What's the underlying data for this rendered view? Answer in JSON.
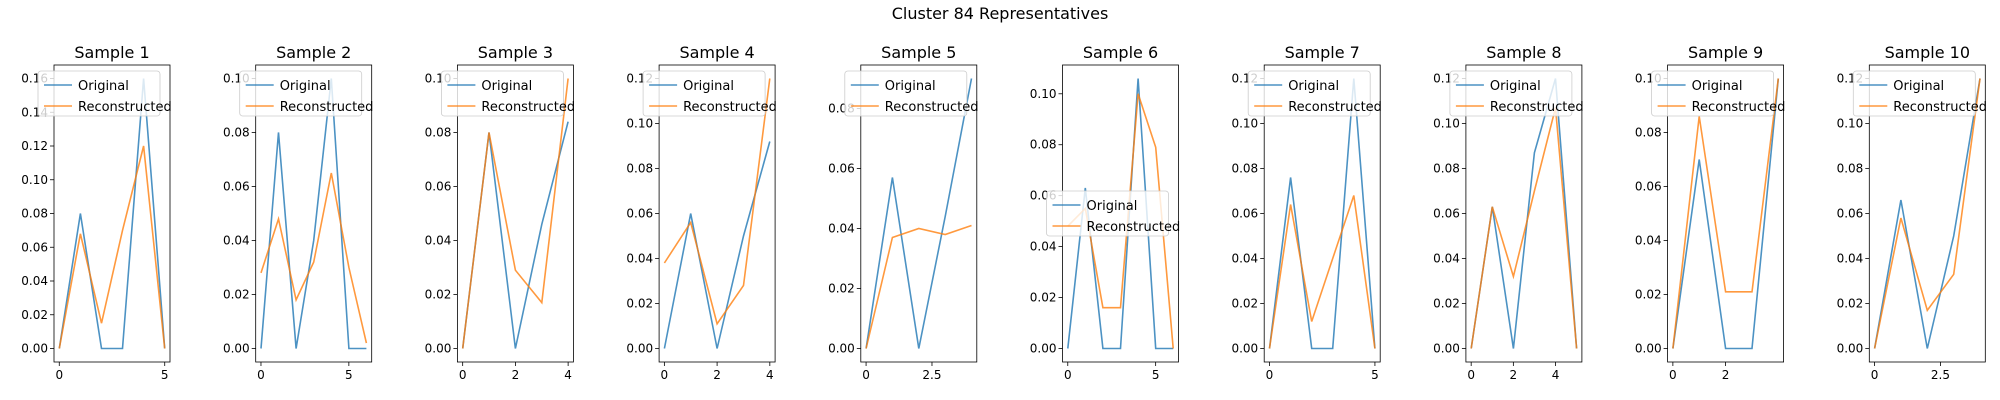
{
  "figure": {
    "title": "Cluster 84 Representatives"
  },
  "style": {
    "original_color": "#1f77b4",
    "reconstructed_color": "#ff7f0e",
    "axis_color": "#000000",
    "background": "#ffffff"
  },
  "chart_data": [
    {
      "type": "line",
      "title": "Sample 1",
      "x_ticks": [
        0,
        5
      ],
      "y_ticks": [
        0.0,
        0.02,
        0.04,
        0.06,
        0.08,
        0.1,
        0.12,
        0.14,
        0.16
      ],
      "xlim": [
        -0.25,
        5.25
      ],
      "ylim": [
        -0.008,
        0.168
      ],
      "legend": "upper left",
      "series": [
        {
          "name": "Original",
          "x": [
            0,
            1,
            2,
            3,
            4,
            5
          ],
          "y": [
            0.0,
            0.08,
            0.0,
            0.0,
            0.16,
            0.0
          ]
        },
        {
          "name": "Reconstructed",
          "x": [
            0,
            1,
            2,
            3,
            4,
            5
          ],
          "y": [
            0.0,
            0.068,
            0.015,
            0.07,
            0.12,
            0.0
          ]
        }
      ]
    },
    {
      "type": "line",
      "title": "Sample 2",
      "x_ticks": [
        0,
        5
      ],
      "y_ticks": [
        0.0,
        0.02,
        0.04,
        0.06,
        0.08,
        0.1
      ],
      "xlim": [
        -0.3,
        6.3
      ],
      "ylim": [
        -0.005,
        0.105
      ],
      "legend": "upper left",
      "series": [
        {
          "name": "Original",
          "x": [
            0,
            1,
            2,
            3,
            4,
            5,
            6
          ],
          "y": [
            0.0,
            0.08,
            0.0,
            0.04,
            0.1,
            0.0,
            0.0
          ]
        },
        {
          "name": "Reconstructed",
          "x": [
            0,
            1,
            2,
            3,
            4,
            5,
            6
          ],
          "y": [
            0.028,
            0.048,
            0.018,
            0.032,
            0.065,
            0.03,
            0.002
          ]
        }
      ]
    },
    {
      "type": "line",
      "title": "Sample 3",
      "x_ticks": [
        0,
        2,
        4
      ],
      "y_ticks": [
        0.0,
        0.02,
        0.04,
        0.06,
        0.08,
        0.1
      ],
      "xlim": [
        -0.2,
        4.2
      ],
      "ylim": [
        -0.005,
        0.105
      ],
      "legend": "upper left",
      "series": [
        {
          "name": "Original",
          "x": [
            0,
            1,
            2,
            3,
            4
          ],
          "y": [
            0.0,
            0.08,
            0.0,
            0.046,
            0.084
          ]
        },
        {
          "name": "Reconstructed",
          "x": [
            0,
            1,
            2,
            3,
            4
          ],
          "y": [
            0.0,
            0.08,
            0.029,
            0.017,
            0.1
          ]
        }
      ]
    },
    {
      "type": "line",
      "title": "Sample 4",
      "x_ticks": [
        0,
        2,
        4
      ],
      "y_ticks": [
        0.0,
        0.02,
        0.04,
        0.06,
        0.08,
        0.1,
        0.12
      ],
      "xlim": [
        -0.2,
        4.2
      ],
      "ylim": [
        -0.006,
        0.126
      ],
      "legend": "upper left",
      "series": [
        {
          "name": "Original",
          "x": [
            0,
            1,
            2,
            3,
            4
          ],
          "y": [
            0.0,
            0.06,
            0.0,
            0.05,
            0.092
          ]
        },
        {
          "name": "Reconstructed",
          "x": [
            0,
            1,
            2,
            3,
            4
          ],
          "y": [
            0.038,
            0.056,
            0.011,
            0.028,
            0.12
          ]
        }
      ]
    },
    {
      "type": "line",
      "title": "Sample 5",
      "x_ticks": [
        0,
        2.5
      ],
      "y_ticks": [
        0.0,
        0.02,
        0.04,
        0.06,
        0.08
      ],
      "xlim": [
        -0.2,
        4.2
      ],
      "ylim": [
        -0.0045,
        0.0945
      ],
      "legend": "upper left",
      "series": [
        {
          "name": "Original",
          "x": [
            0,
            1,
            2,
            3,
            4
          ],
          "y": [
            0.0,
            0.057,
            0.0,
            0.044,
            0.09
          ]
        },
        {
          "name": "Reconstructed",
          "x": [
            0,
            1,
            2,
            3,
            4
          ],
          "y": [
            0.0,
            0.037,
            0.04,
            0.038,
            0.041
          ]
        }
      ]
    },
    {
      "type": "line",
      "title": "Sample 6",
      "x_ticks": [
        0,
        5
      ],
      "y_ticks": [
        0.0,
        0.02,
        0.04,
        0.06,
        0.08,
        0.1
      ],
      "xlim": [
        -0.3,
        6.3
      ],
      "ylim": [
        -0.0053,
        0.1113
      ],
      "legend": "center left",
      "series": [
        {
          "name": "Original",
          "x": [
            0,
            1,
            2,
            3,
            4,
            5,
            6
          ],
          "y": [
            0.0,
            0.063,
            0.0,
            0.0,
            0.106,
            0.0,
            0.0
          ]
        },
        {
          "name": "Reconstructed",
          "x": [
            0,
            1,
            2,
            3,
            4,
            5,
            6
          ],
          "y": [
            0.048,
            0.055,
            0.016,
            0.016,
            0.1,
            0.079,
            0.0
          ]
        }
      ]
    },
    {
      "type": "line",
      "title": "Sample 7",
      "x_ticks": [
        0,
        5
      ],
      "y_ticks": [
        0.0,
        0.02,
        0.04,
        0.06,
        0.08,
        0.1,
        0.12
      ],
      "xlim": [
        -0.25,
        5.25
      ],
      "ylim": [
        -0.006,
        0.126
      ],
      "legend": "upper left",
      "series": [
        {
          "name": "Original",
          "x": [
            0,
            1,
            2,
            3,
            4,
            5
          ],
          "y": [
            0.0,
            0.076,
            0.0,
            0.0,
            0.12,
            0.0
          ]
        },
        {
          "name": "Reconstructed",
          "x": [
            0,
            1,
            2,
            3,
            4,
            5
          ],
          "y": [
            0.0,
            0.064,
            0.012,
            0.04,
            0.068,
            0.0
          ]
        }
      ]
    },
    {
      "type": "line",
      "title": "Sample 8",
      "x_ticks": [
        0,
        2,
        4
      ],
      "y_ticks": [
        0.0,
        0.02,
        0.04,
        0.06,
        0.08,
        0.1,
        0.12
      ],
      "xlim": [
        -0.25,
        5.25
      ],
      "ylim": [
        -0.006,
        0.126
      ],
      "legend": "upper left",
      "series": [
        {
          "name": "Original",
          "x": [
            0,
            1,
            2,
            3,
            4,
            5
          ],
          "y": [
            0.0,
            0.063,
            0.0,
            0.087,
            0.12,
            0.0
          ]
        },
        {
          "name": "Reconstructed",
          "x": [
            0,
            1,
            2,
            3,
            4,
            5
          ],
          "y": [
            0.0,
            0.063,
            0.032,
            0.07,
            0.107,
            0.0
          ]
        }
      ]
    },
    {
      "type": "line",
      "title": "Sample 9",
      "x_ticks": [
        0,
        2
      ],
      "y_ticks": [
        0.0,
        0.02,
        0.04,
        0.06,
        0.08,
        0.1
      ],
      "xlim": [
        -0.2,
        4.2
      ],
      "ylim": [
        -0.005,
        0.105
      ],
      "legend": "upper left",
      "series": [
        {
          "name": "Original",
          "x": [
            0,
            1,
            2,
            3,
            4
          ],
          "y": [
            0.0,
            0.07,
            0.0,
            0.0,
            0.1
          ]
        },
        {
          "name": "Reconstructed",
          "x": [
            0,
            1,
            2,
            3,
            4
          ],
          "y": [
            0.0,
            0.086,
            0.021,
            0.021,
            0.1
          ]
        }
      ]
    },
    {
      "type": "line",
      "title": "Sample 10",
      "x_ticks": [
        0,
        2.5
      ],
      "y_ticks": [
        0.0,
        0.02,
        0.04,
        0.06,
        0.08,
        0.1,
        0.12
      ],
      "xlim": [
        -0.2,
        4.2
      ],
      "ylim": [
        -0.006,
        0.126
      ],
      "legend": "upper left",
      "series": [
        {
          "name": "Original",
          "x": [
            0,
            1,
            2,
            3,
            4
          ],
          "y": [
            0.0,
            0.066,
            0.0,
            0.05,
            0.12
          ]
        },
        {
          "name": "Reconstructed",
          "x": [
            0,
            1,
            2,
            3,
            4
          ],
          "y": [
            0.0,
            0.058,
            0.017,
            0.033,
            0.12
          ]
        }
      ]
    }
  ]
}
